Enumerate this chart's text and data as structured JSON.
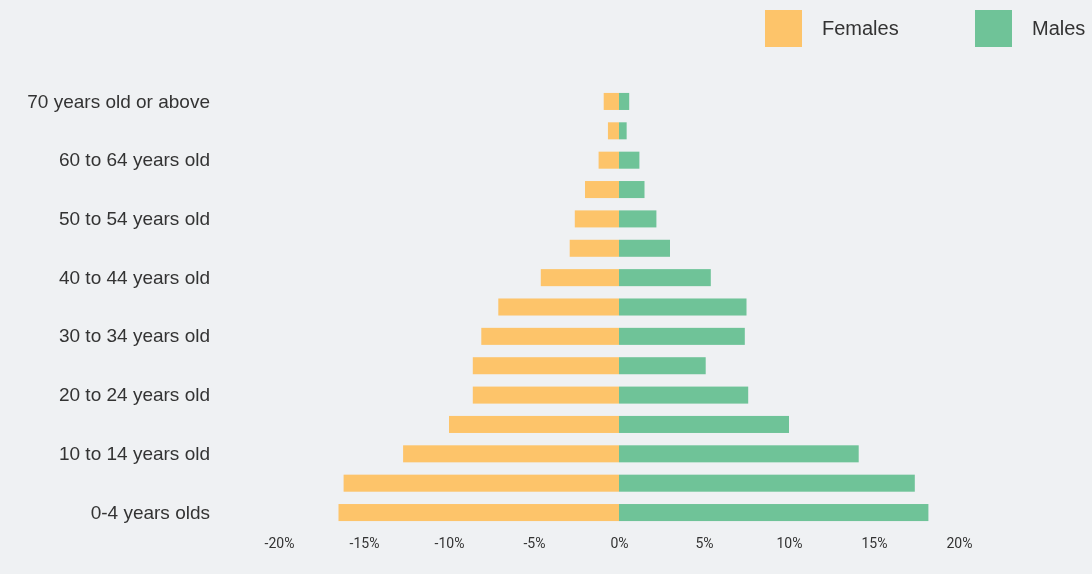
{
  "chart_data": {
    "type": "bar",
    "orientation": "horizontal",
    "categories": [
      "70 years old or above",
      null,
      "60 to 64 years old",
      null,
      "50 to 54 years old",
      null,
      "40 to 44 years old",
      null,
      "30 to 34 years old",
      null,
      "20 to 24 years old",
      null,
      "10 to 14 years old",
      null,
      "0-4 years olds"
    ],
    "series": [
      {
        "name": "Females",
        "color": "#fdc46a",
        "values": [
          -0.9,
          -0.65,
          -1.2,
          -2.0,
          -2.6,
          -2.9,
          -4.6,
          -7.1,
          -8.1,
          -8.6,
          -8.6,
          -10.0,
          -12.7,
          -16.2,
          -16.5
        ]
      },
      {
        "name": "Males",
        "color": "#6fc398",
        "values": [
          0.6,
          0.45,
          1.2,
          1.5,
          2.2,
          3.0,
          5.4,
          7.5,
          7.4,
          5.1,
          7.6,
          10.0,
          14.1,
          17.4,
          18.2
        ]
      }
    ],
    "xlim": [
      -20,
      20
    ],
    "xticks": [
      {
        "value": -20,
        "label": "-20%"
      },
      {
        "value": -15,
        "label": "-15%"
      },
      {
        "value": -10,
        "label": "-10%"
      },
      {
        "value": -5,
        "label": "-5%"
      },
      {
        "value": 0,
        "label": "0%"
      },
      {
        "value": 5,
        "label": "5%"
      },
      {
        "value": 10,
        "label": "10%"
      },
      {
        "value": 15,
        "label": "15%"
      },
      {
        "value": 20,
        "label": "20%"
      }
    ],
    "stacked": true,
    "legend": "top right",
    "grid": false
  }
}
